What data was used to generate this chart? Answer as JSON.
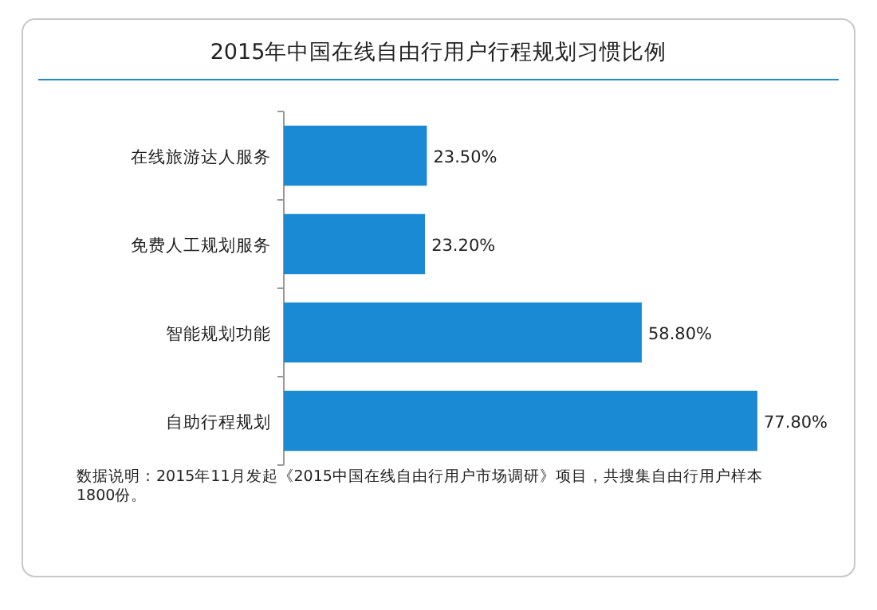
{
  "chart_data": {
    "type": "bar",
    "orientation": "horizontal",
    "title": "2015年中国在线自由行用户行程规划习惯比例",
    "categories": [
      "在线旅游达人服务",
      "免费人工规划服务",
      "智能规划功能",
      "自助行程规划"
    ],
    "values": [
      23.5,
      23.2,
      58.8,
      77.8
    ],
    "value_labels": [
      "23.50%",
      "23.20%",
      "58.80%",
      "77.80%"
    ],
    "color": "#1a8ad4",
    "annotations": [
      "数据说明：2015年11月发起《2015中国在线自由行用户市场调研》项目，共搜集自由行用户样本1800份。"
    ]
  }
}
